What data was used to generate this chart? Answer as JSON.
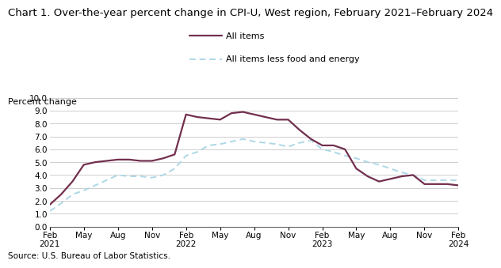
{
  "title": "Chart 1. Over-the-year percent change in CPI-U, West region, February 2021–February 2024",
  "ylabel": "Percent change",
  "source": "Source: U.S. Bureau of Labor Statistics.",
  "ylim": [
    0.0,
    10.0
  ],
  "yticks": [
    0.0,
    1.0,
    2.0,
    3.0,
    4.0,
    5.0,
    6.0,
    7.0,
    8.0,
    9.0,
    10.0
  ],
  "all_items_monthly": [
    1.7,
    2.5,
    3.5,
    4.8,
    5.0,
    5.1,
    5.2,
    5.2,
    5.1,
    5.1,
    5.3,
    5.6,
    8.7,
    8.5,
    8.4,
    8.3,
    8.8,
    8.9,
    8.7,
    8.5,
    8.3,
    8.3,
    7.5,
    6.8,
    6.3,
    6.3,
    6.0,
    4.5,
    3.9,
    3.5,
    3.7,
    3.9,
    4.0,
    3.3,
    3.3,
    3.3,
    3.2
  ],
  "all_items_less_monthly": [
    1.2,
    1.8,
    2.5,
    2.8,
    3.2,
    3.6,
    4.0,
    3.9,
    3.9,
    3.8,
    4.0,
    4.5,
    5.5,
    5.8,
    6.3,
    6.4,
    6.6,
    6.8,
    6.6,
    6.5,
    6.4,
    6.2,
    6.5,
    6.7,
    6.0,
    5.8,
    5.5,
    5.3,
    5.0,
    4.8,
    4.5,
    4.2,
    4.0,
    3.6,
    3.6,
    3.6,
    3.6
  ],
  "xtick_positions": [
    0,
    3,
    6,
    9,
    12,
    15,
    18,
    21,
    24,
    27,
    30,
    33,
    36
  ],
  "xtick_labels": [
    "Feb\n2021",
    "May",
    "Aug",
    "Nov",
    "Feb\n2022",
    "May",
    "Aug",
    "Nov",
    "Feb\n2023",
    "May",
    "Aug",
    "Nov",
    "Feb\n2024"
  ],
  "all_items_color": "#722F4E",
  "all_items_less_color": "#ADD8E6",
  "background_color": "#ffffff",
  "grid_color": "#bbbbbb",
  "title_fontsize": 9.5,
  "label_fontsize": 8,
  "tick_fontsize": 7.5,
  "legend_fontsize": 8,
  "source_fontsize": 7.5
}
